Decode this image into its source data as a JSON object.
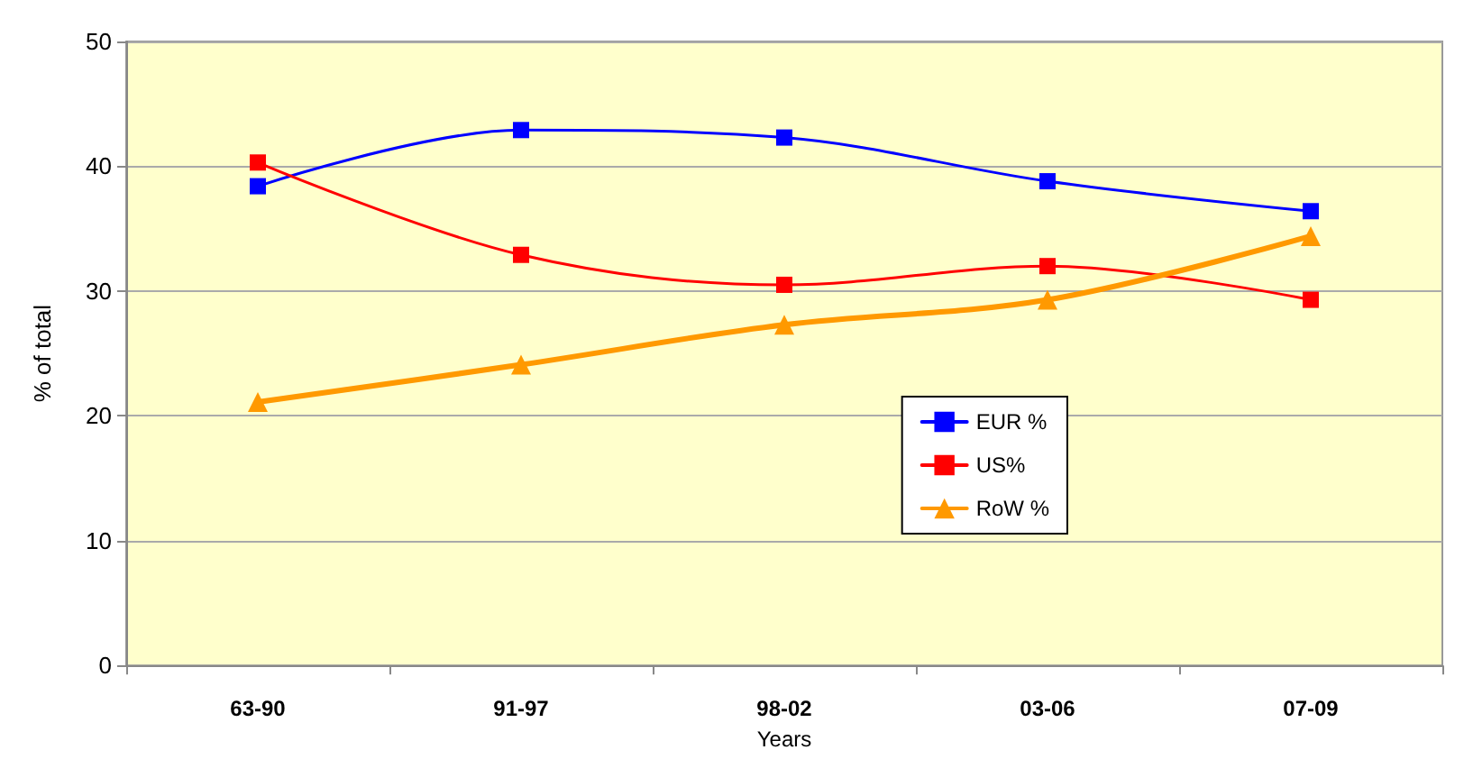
{
  "chart_data": {
    "type": "line",
    "xlabel": "Years",
    "ylabel": "% of total",
    "categories": [
      "63-90",
      "91-97",
      "98-02",
      "03-06",
      "07-09"
    ],
    "series": [
      {
        "name": "EUR %",
        "color": "#0000ff",
        "marker": "square",
        "values": [
          38.4,
          42.9,
          42.3,
          38.8,
          36.4
        ]
      },
      {
        "name": "US%",
        "color": "#ff0000",
        "marker": "square",
        "values": [
          40.3,
          32.9,
          30.5,
          32.0,
          29.3
        ]
      },
      {
        "name": "RoW %",
        "color": "#ff9900",
        "marker": "triangle",
        "values": [
          21.1,
          24.1,
          27.3,
          29.3,
          34.4
        ]
      }
    ],
    "ylim": [
      0,
      50
    ],
    "yticks": [
      0,
      10,
      20,
      30,
      40,
      50
    ],
    "grid": "y",
    "legend": "right"
  }
}
